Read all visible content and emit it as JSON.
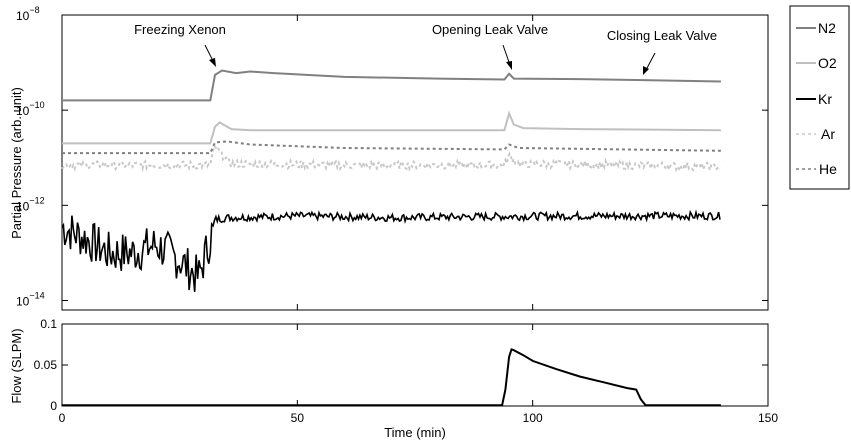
{
  "chart_data": [
    {
      "type": "line",
      "title": "",
      "xlabel": "",
      "ylabel": "Partial Pressure (arb. unit)",
      "xlim": [
        0,
        150
      ],
      "ylim_log10": [
        -14.2,
        -8
      ],
      "yscale": "log",
      "grid": false,
      "legend_position": "outside-right",
      "yticks": [
        {
          "value": 1e-14,
          "base": "10",
          "exp": "−14"
        },
        {
          "value": 1e-12,
          "base": "10",
          "exp": "−12"
        },
        {
          "value": 1e-10,
          "base": "10",
          "exp": "−10"
        },
        {
          "value": 1e-08,
          "base": "10",
          "exp": "−8"
        }
      ],
      "annotations": [
        {
          "text": "Freezing Xenon",
          "x": 32.5,
          "y": 6e-10
        },
        {
          "text": "Opening Leak Valve",
          "x": 95,
          "y": 4.5e-10
        },
        {
          "text": "Closing Leak Valve",
          "x": 122,
          "y": 4e-10
        }
      ],
      "series": [
        {
          "name": "N2",
          "color": "#808080",
          "style": "solid",
          "points": [
            [
              0,
              1.6e-10
            ],
            [
              31.5,
              1.6e-10
            ],
            [
              32.5,
              5.5e-10
            ],
            [
              34,
              6.8e-10
            ],
            [
              37,
              6e-10
            ],
            [
              40,
              6.5e-10
            ],
            [
              45,
              6e-10
            ],
            [
              60,
              5e-10
            ],
            [
              80,
              4.6e-10
            ],
            [
              94,
              4.4e-10
            ],
            [
              95,
              5.8e-10
            ],
            [
              96,
              4.6e-10
            ],
            [
              110,
              4.5e-10
            ],
            [
              122,
              4.3e-10
            ],
            [
              140,
              4e-10
            ]
          ]
        },
        {
          "name": "O2",
          "color": "#c0c0c0",
          "style": "solid",
          "points": [
            [
              0,
              2e-11
            ],
            [
              31.5,
              2e-11
            ],
            [
              32.5,
              4.5e-11
            ],
            [
              33.5,
              5.5e-11
            ],
            [
              36,
              4e-11
            ],
            [
              40,
              3.8e-11
            ],
            [
              60,
              3.8e-11
            ],
            [
              94,
              3.8e-11
            ],
            [
              95,
              8.5e-11
            ],
            [
              96,
              5e-11
            ],
            [
              98,
              4.2e-11
            ],
            [
              110,
              4e-11
            ],
            [
              140,
              3.8e-11
            ]
          ]
        },
        {
          "name": "Kr",
          "color": "#000000",
          "style": "solid",
          "noisy": true,
          "points": [
            [
              0,
              3.5e-13
            ],
            [
              5,
              2e-13
            ],
            [
              10,
              1e-13
            ],
            [
              15,
              1e-13
            ],
            [
              20,
              1.5e-13
            ],
            [
              25,
              7e-14
            ],
            [
              29,
              3e-14
            ],
            [
              31.5,
              2e-13
            ],
            [
              32.5,
              5e-13
            ],
            [
              35,
              5.5e-13
            ],
            [
              50,
              6e-13
            ],
            [
              70,
              5.5e-13
            ],
            [
              90,
              5.8e-13
            ],
            [
              110,
              6e-13
            ],
            [
              140,
              6e-13
            ]
          ]
        },
        {
          "name": "Ar",
          "color": "#c8c8c8",
          "style": "dashed",
          "noisy": true,
          "points": [
            [
              0,
              7e-12
            ],
            [
              31.5,
              7e-12
            ],
            [
              32.5,
              1.8e-11
            ],
            [
              34,
              1.1e-11
            ],
            [
              36,
              7.5e-12
            ],
            [
              60,
              7e-12
            ],
            [
              94,
              7e-12
            ],
            [
              95,
              1.1e-11
            ],
            [
              97,
              7.5e-12
            ],
            [
              140,
              6.5e-12
            ]
          ]
        },
        {
          "name": "He",
          "color": "#808080",
          "style": "dashed",
          "points": [
            [
              0,
              1.25e-11
            ],
            [
              31.5,
              1.25e-11
            ],
            [
              32.5,
              2.1e-11
            ],
            [
              35,
              2.2e-11
            ],
            [
              40,
              1.9e-11
            ],
            [
              60,
              1.6e-11
            ],
            [
              94,
              1.5e-11
            ],
            [
              95,
              1.9e-11
            ],
            [
              97,
              1.6e-11
            ],
            [
              140,
              1.4e-11
            ]
          ]
        }
      ],
      "legend": [
        "N2",
        "O2",
        "Kr",
        "Ar",
        "He"
      ]
    },
    {
      "type": "line",
      "title": "",
      "xlabel": "Time (min)",
      "ylabel": "Flow (SLPM)",
      "xlim": [
        0,
        150
      ],
      "ylim": [
        0,
        0.1
      ],
      "xticks": [
        "0",
        "50",
        "100",
        "150"
      ],
      "yticks": [
        "0",
        "0.05",
        "0.1"
      ],
      "grid": false,
      "series": [
        {
          "name": "",
          "color": "#000000",
          "style": "solid",
          "points": [
            [
              0,
              0.001
            ],
            [
              93.5,
              0.001
            ],
            [
              94.2,
              0.02
            ],
            [
              95,
              0.06
            ],
            [
              95.5,
              0.069
            ],
            [
              96,
              0.068
            ],
            [
              98,
              0.062
            ],
            [
              100,
              0.055
            ],
            [
              105,
              0.045
            ],
            [
              110,
              0.036
            ],
            [
              115,
              0.029
            ],
            [
              120,
              0.022
            ],
            [
              122,
              0.02
            ],
            [
              123,
              0.008
            ],
            [
              124,
              0.001
            ],
            [
              140,
              0.001
            ]
          ]
        }
      ]
    }
  ]
}
